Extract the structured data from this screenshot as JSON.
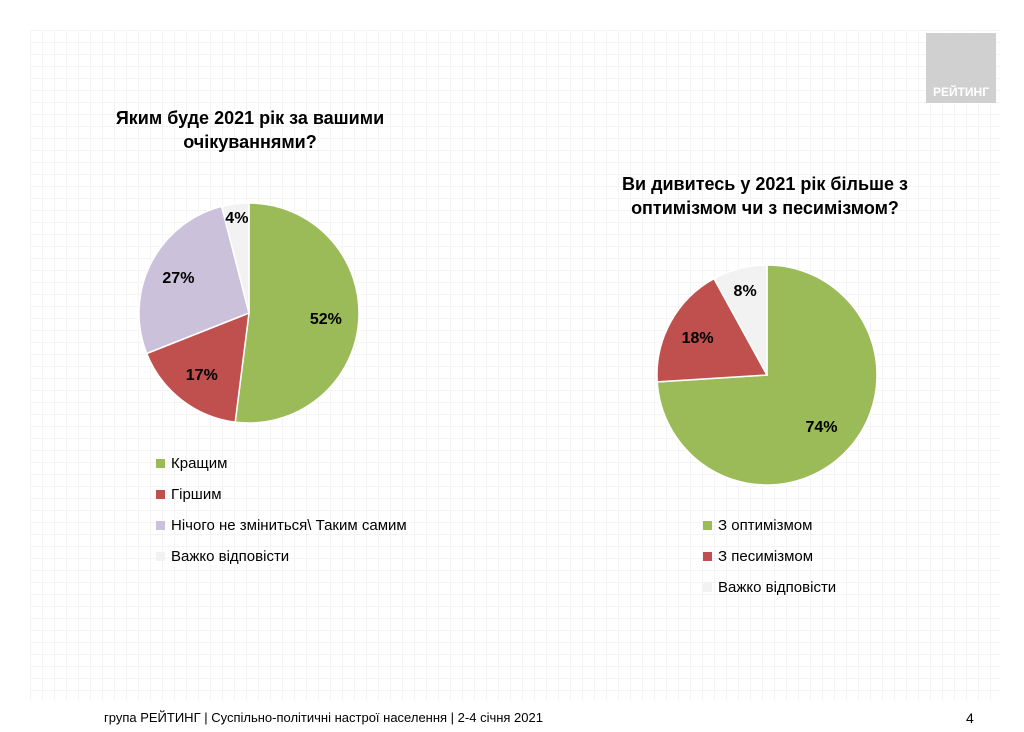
{
  "logo": "РЕЙТИНГ",
  "chart_data": [
    {
      "type": "pie",
      "title": "Яким буде 2021 рік за вашими очікуваннями?",
      "labels": [
        "Кращим",
        "Гіршим",
        "Нічого не зміниться\\ Таким самим",
        "Важко відповісти"
      ],
      "values": [
        52,
        17,
        27,
        4
      ],
      "data_labels": [
        "52%",
        "17%",
        "27%",
        "4%"
      ],
      "colors": [
        "#9bbb59",
        "#c0504d",
        "#ccc1da",
        "#f2f2f2"
      ],
      "legend": "bottom"
    },
    {
      "type": "pie",
      "title": "Ви дивитесь у 2021 рік більше з оптимізмом чи з песимізмом?",
      "labels": [
        "З оптимізмом",
        "З песимізмом",
        "Важко відповісти"
      ],
      "values": [
        74,
        18,
        8
      ],
      "data_labels": [
        "74%",
        "18%",
        "8%"
      ],
      "colors": [
        "#9bbb59",
        "#c0504d",
        "#f2f2f2"
      ],
      "legend": "bottom"
    }
  ],
  "footer": "група РЕЙТИНГ | Суспільно-політичні настрої населення  | 2-4 січня 2021",
  "page_number": "4"
}
